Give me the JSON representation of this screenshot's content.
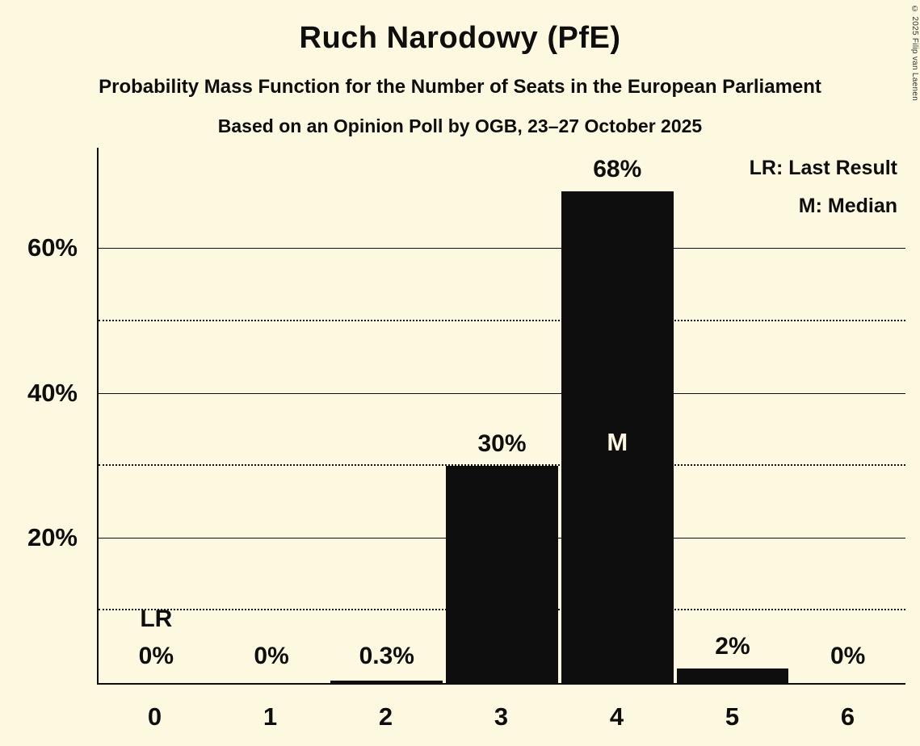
{
  "header": {
    "title": "Ruch Narodowy (PfE)",
    "subtitle1": "Probability Mass Function for the Number of Seats in the European Parliament",
    "subtitle2": "Based on an Opinion Poll by OGB, 23–27 October 2025"
  },
  "legend": {
    "lr": "LR: Last Result",
    "m": "M: Median"
  },
  "copyright": "© 2025 Filip van Laenen",
  "chart_data": {
    "type": "bar",
    "title": "Ruch Narodowy (PfE)",
    "subtitle": "Probability Mass Function for the Number of Seats in the European Parliament",
    "poll_note": "Based on an Opinion Poll by OGB, 23–27 October 2025",
    "categories": [
      "0",
      "1",
      "2",
      "3",
      "4",
      "5",
      "6"
    ],
    "values": [
      0,
      0,
      0.3,
      30,
      68,
      2,
      0
    ],
    "bar_labels": [
      "0%",
      "0%",
      "0.3%",
      "30%",
      "68%",
      "2%",
      "0%"
    ],
    "median_index": 4,
    "median_marker": "M",
    "last_result_index": 0,
    "last_result_marker": "LR",
    "ylim": [
      0,
      74
    ],
    "yticks": [
      {
        "value": 20,
        "label": "20%"
      },
      {
        "value": 40,
        "label": "40%"
      },
      {
        "value": 60,
        "label": "60%"
      }
    ],
    "gridlines": [
      {
        "value": 10,
        "style": "dotted"
      },
      {
        "value": 20,
        "style": "solid"
      },
      {
        "value": 30,
        "style": "dotted"
      },
      {
        "value": 40,
        "style": "solid"
      },
      {
        "value": 50,
        "style": "dotted"
      },
      {
        "value": 60,
        "style": "solid"
      }
    ],
    "legend_position": "top-right",
    "colors": {
      "background": "#fdf9e0",
      "bar": "#0e0e0e",
      "text": "#0e0e0e"
    }
  }
}
